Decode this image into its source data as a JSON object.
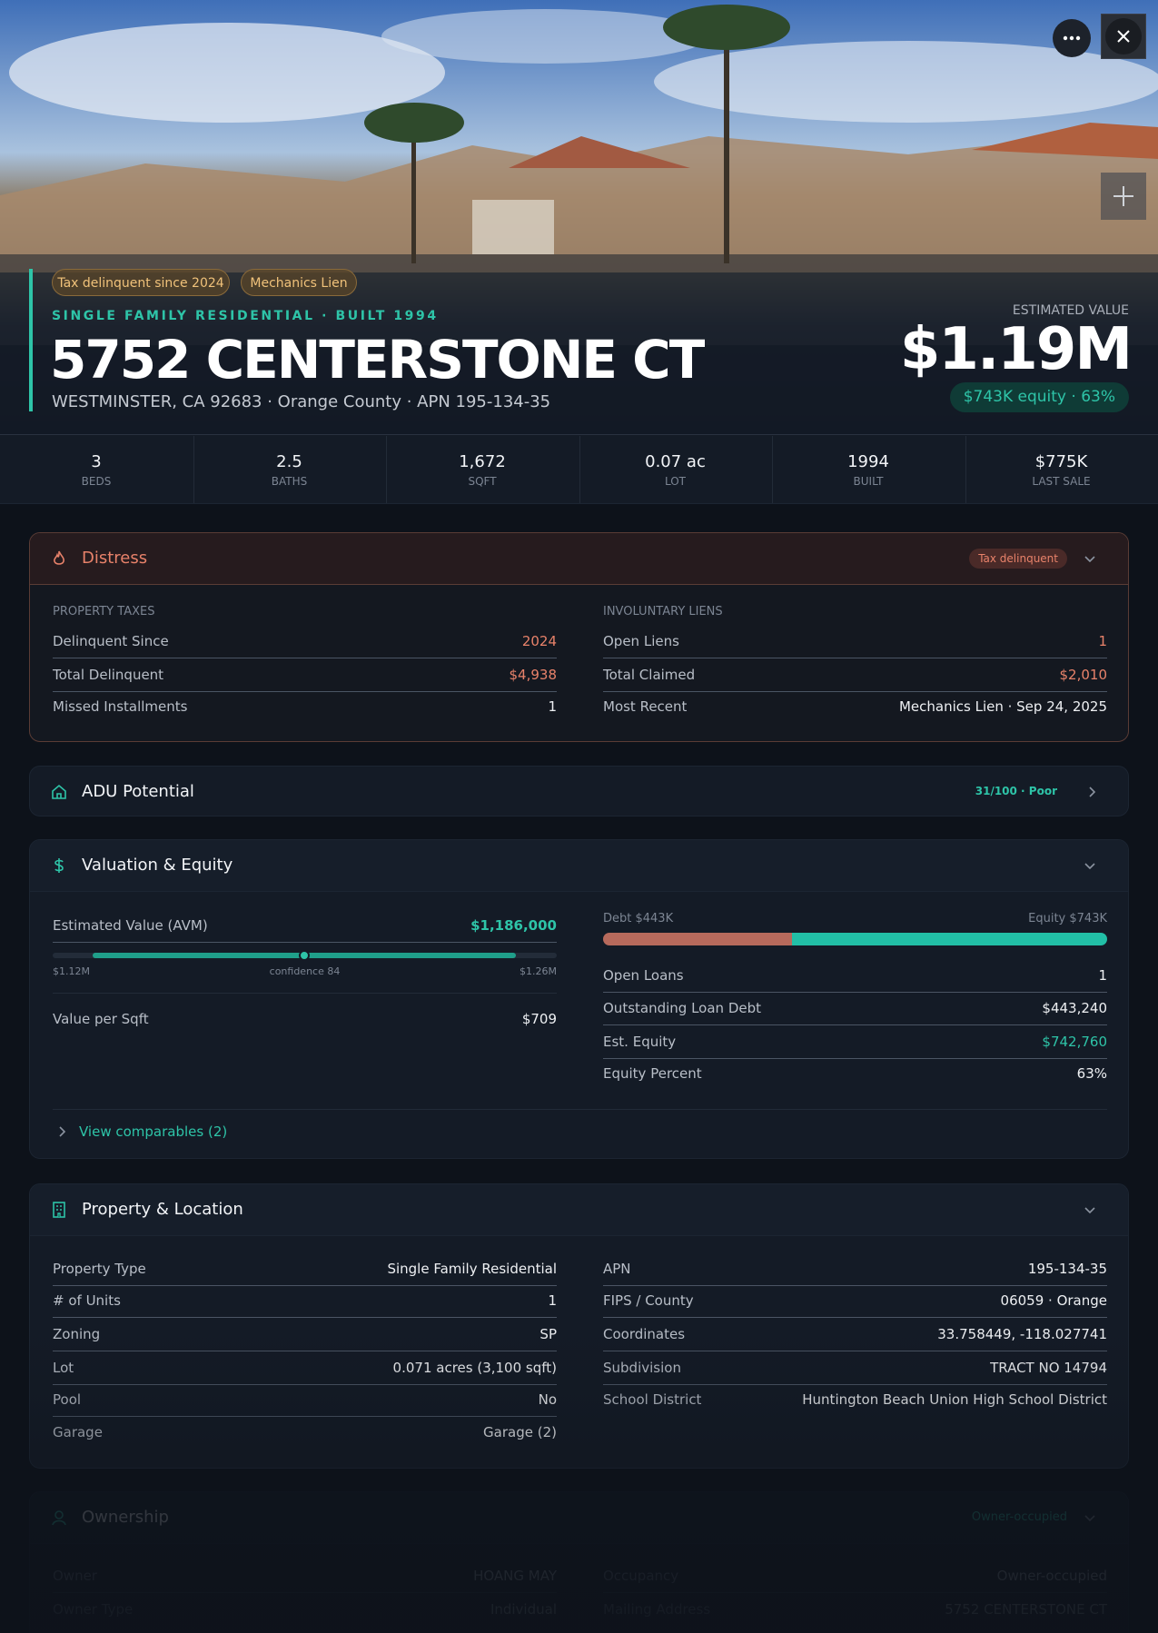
{
  "hero": {
    "tags": [
      "Tax delinquent since 2024",
      "Mechanics Lien"
    ],
    "subtitle": "SINGLE FAMILY RESIDENTIAL · BUILT 1994",
    "title": "5752 CENTERSTONE CT",
    "address": "WESTMINSTER, CA 92683 · Orange County · APN 195-134-35",
    "estimated_label": "ESTIMATED VALUE",
    "estimated_value": "$1.19M",
    "equity": "$743K equity · 63%"
  },
  "stats": [
    {
      "value": "3",
      "label": "BEDS"
    },
    {
      "value": "2.5",
      "label": "BATHS"
    },
    {
      "value": "1,672",
      "label": "SQFT"
    },
    {
      "value": "0.07 ac",
      "label": "LOT"
    },
    {
      "value": "1994",
      "label": "BUILT"
    },
    {
      "value": "$775K",
      "label": "LAST SALE"
    }
  ],
  "distress": {
    "title": "Distress",
    "badge": "Tax delinquent",
    "columns": [
      {
        "heading": "PROPERTY TAXES",
        "rows": [
          {
            "label": "Delinquent Since",
            "value": "2024",
            "color": "#e8826a"
          },
          {
            "label": "Total Delinquent",
            "value": "$4,938",
            "color": "#e8826a"
          },
          {
            "label": "Missed Installments",
            "value": "1"
          }
        ]
      },
      {
        "heading": "INVOLUNTARY LIENS",
        "rows": [
          {
            "label": "Open Liens",
            "value": "1",
            "color": "#e8826a"
          },
          {
            "label": "Total Claimed",
            "value": "$2,010",
            "color": "#e8826a"
          },
          {
            "label": "Most Recent",
            "value": "Mechanics Lien · Sep 24, 2025"
          }
        ]
      }
    ]
  },
  "adu": {
    "title": "ADU Potential",
    "score": "31/100 · Poor"
  },
  "valuation": {
    "title": "Valuation & Equity",
    "avm": {
      "label": "Estimated Value (AVM)",
      "value": "$1,186,000"
    },
    "range": {
      "low": "$1.12M",
      "mid": "confidence 84",
      "high": "$1.26M"
    },
    "per_sqft": {
      "label": "Value per Sqft",
      "value": "$709"
    },
    "debt_label": "Debt $443K",
    "equity_label": "Equity $743K",
    "rows": [
      {
        "label": "Open Loans",
        "value": "1"
      },
      {
        "label": "Outstanding Loan Debt",
        "value": "$443,240"
      },
      {
        "label": "Est. Equity",
        "value": "$742,760",
        "color": "#2ec4a8"
      },
      {
        "label": "Equity Percent",
        "value": "63%"
      }
    ],
    "link": "View comparables (2)"
  },
  "property": {
    "title": "Property & Location",
    "columns": [
      {
        "rows": [
          {
            "label": "Property Type",
            "value": "Single Family Residential"
          },
          {
            "label": "# of Units",
            "value": "1"
          },
          {
            "label": "Zoning",
            "value": "SP"
          },
          {
            "label": "Lot",
            "value": "0.071 acres (3,100 sqft)"
          },
          {
            "label": "Pool",
            "value": "No"
          },
          {
            "label": "Garage",
            "value": "Garage (2)"
          }
        ]
      },
      {
        "rows": [
          {
            "label": "APN",
            "value": "195-134-35"
          },
          {
            "label": "FIPS / County",
            "value": "06059 · Orange"
          },
          {
            "label": "Coordinates",
            "value": "33.758449, -118.027741"
          },
          {
            "label": "Subdivision",
            "value": "TRACT NO 14794"
          },
          {
            "label": "School District",
            "value": "Huntington Beach Union High School District"
          }
        ]
      }
    ]
  },
  "ownership": {
    "title": "Ownership",
    "badge": "Owner-occupied",
    "columns": [
      {
        "rows": [
          {
            "label": "Owner",
            "value": "HOANG MAY"
          },
          {
            "label": "Owner Type",
            "value": "Individual"
          }
        ]
      },
      {
        "rows": [
          {
            "label": "Occupancy",
            "value": "Owner-occupied"
          },
          {
            "label": "Mailing Address",
            "value": "5752 CENTERSTONE CT"
          }
        ]
      }
    ]
  }
}
